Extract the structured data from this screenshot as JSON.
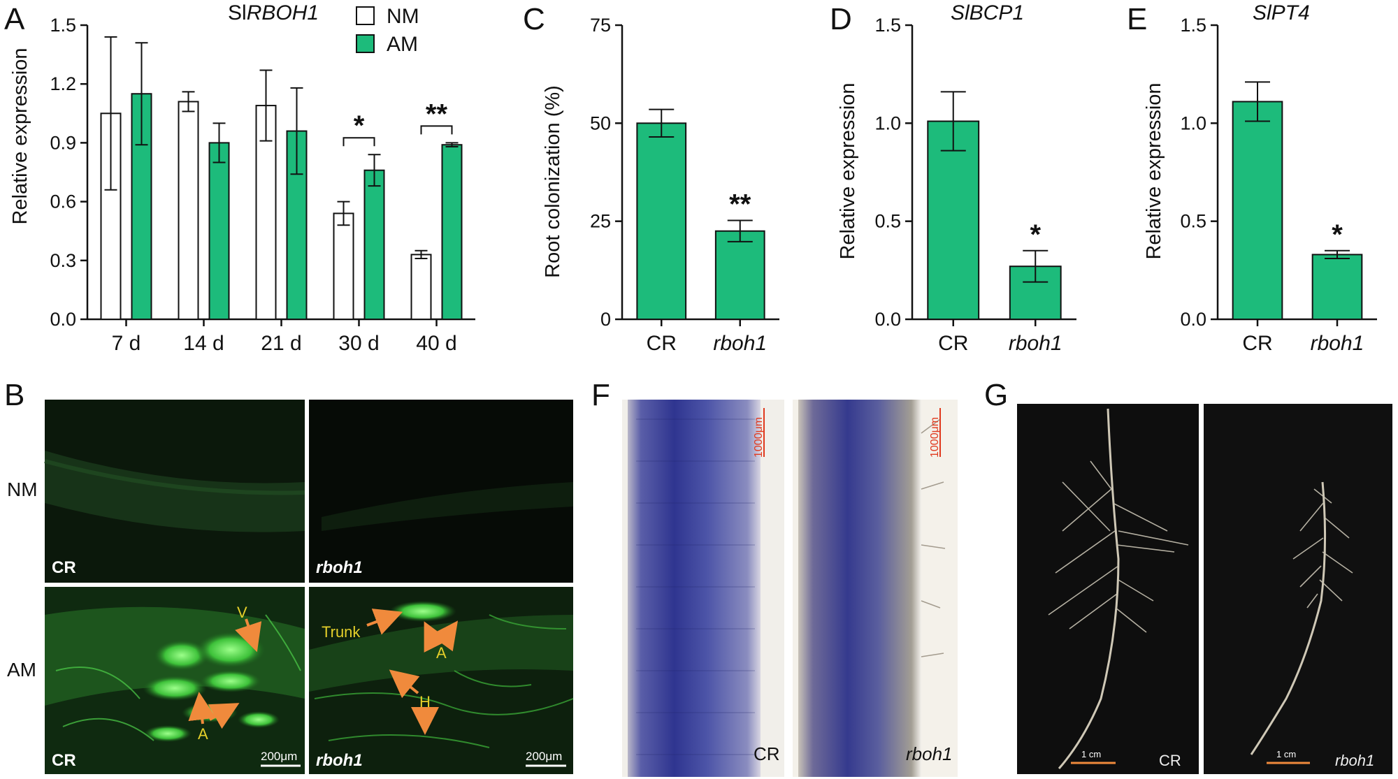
{
  "colors": {
    "nm_fill": "#ffffff",
    "am_fill": "#1dbb7b",
    "axis": "#111111",
    "arrow": "#f08a3c",
    "fluor_bg": "#0a150b",
    "root_bg": "#0d0d0d",
    "stain_blue": "#3a3f9c"
  },
  "panels": {
    "A": "A",
    "B": "B",
    "C": "C",
    "D": "D",
    "E": "E",
    "F": "F",
    "G": "G"
  },
  "chart_data": [
    {
      "panel": "A",
      "type": "bar",
      "title_prefix": "Sl",
      "title_italic": "RBOH1",
      "ylabel": "Relative expression",
      "ylim": [
        0,
        1.5
      ],
      "yticks": [
        "0.0",
        "0.3",
        "0.6",
        "0.9",
        "1.2",
        "1.5"
      ],
      "categories": [
        "7 d",
        "14 d",
        "21 d",
        "30 d",
        "40 d"
      ],
      "legend": [
        "NM",
        "AM"
      ],
      "legend_position": "top-right",
      "series": [
        {
          "name": "NM",
          "values": [
            1.05,
            1.11,
            1.09,
            0.54,
            0.33
          ],
          "errors": [
            0.39,
            0.05,
            0.18,
            0.06,
            0.02
          ]
        },
        {
          "name": "AM",
          "values": [
            1.15,
            0.9,
            0.96,
            0.76,
            0.89
          ],
          "errors": [
            0.26,
            0.1,
            0.22,
            0.08,
            0.01
          ]
        }
      ],
      "significance": [
        {
          "category": "30 d",
          "label": "*"
        },
        {
          "category": "40 d",
          "label": "**"
        }
      ]
    },
    {
      "panel": "C",
      "type": "bar",
      "ylabel": "Root colonization (%)",
      "ylim": [
        0,
        75
      ],
      "yticks": [
        "0",
        "25",
        "50",
        "75"
      ],
      "categories": [
        "CR",
        "rboh1"
      ],
      "values": [
        50.0,
        22.5
      ],
      "errors": [
        3.5,
        2.7
      ],
      "significance": [
        "",
        "**"
      ]
    },
    {
      "panel": "D",
      "type": "bar",
      "title_italic": "SlBCP1",
      "ylabel": "Relative expression",
      "ylim": [
        0,
        1.5
      ],
      "yticks": [
        "0.0",
        "0.5",
        "1.0",
        "1.5"
      ],
      "categories": [
        "CR",
        "rboh1"
      ],
      "values": [
        1.01,
        0.27
      ],
      "errors": [
        0.15,
        0.08
      ],
      "significance": [
        "",
        "*"
      ]
    },
    {
      "panel": "E",
      "type": "bar",
      "title_italic": "SlPT4",
      "ylabel": "Relative expression",
      "ylim": [
        0,
        1.5
      ],
      "yticks": [
        "0.0",
        "0.5",
        "1.0",
        "1.5"
      ],
      "categories": [
        "CR",
        "rboh1"
      ],
      "values": [
        1.11,
        0.33
      ],
      "errors": [
        0.1,
        0.02
      ],
      "significance": [
        "",
        "*"
      ]
    }
  ],
  "panel_b": {
    "row_labels": [
      "NM",
      "AM"
    ],
    "labels": {
      "cr": "CR",
      "rboh1": "rboh1"
    },
    "annotations": {
      "v": "V",
      "a": "A",
      "trunk": "Trunk",
      "h": "H"
    },
    "scale_bar": "200μm"
  },
  "panel_f": {
    "labels": {
      "cr": "CR",
      "rboh1": "rboh1"
    },
    "scale_bar": "1000μm"
  },
  "panel_g": {
    "labels": {
      "cr": "CR",
      "rboh1": "rboh1"
    },
    "scale_bar": "1 cm"
  }
}
